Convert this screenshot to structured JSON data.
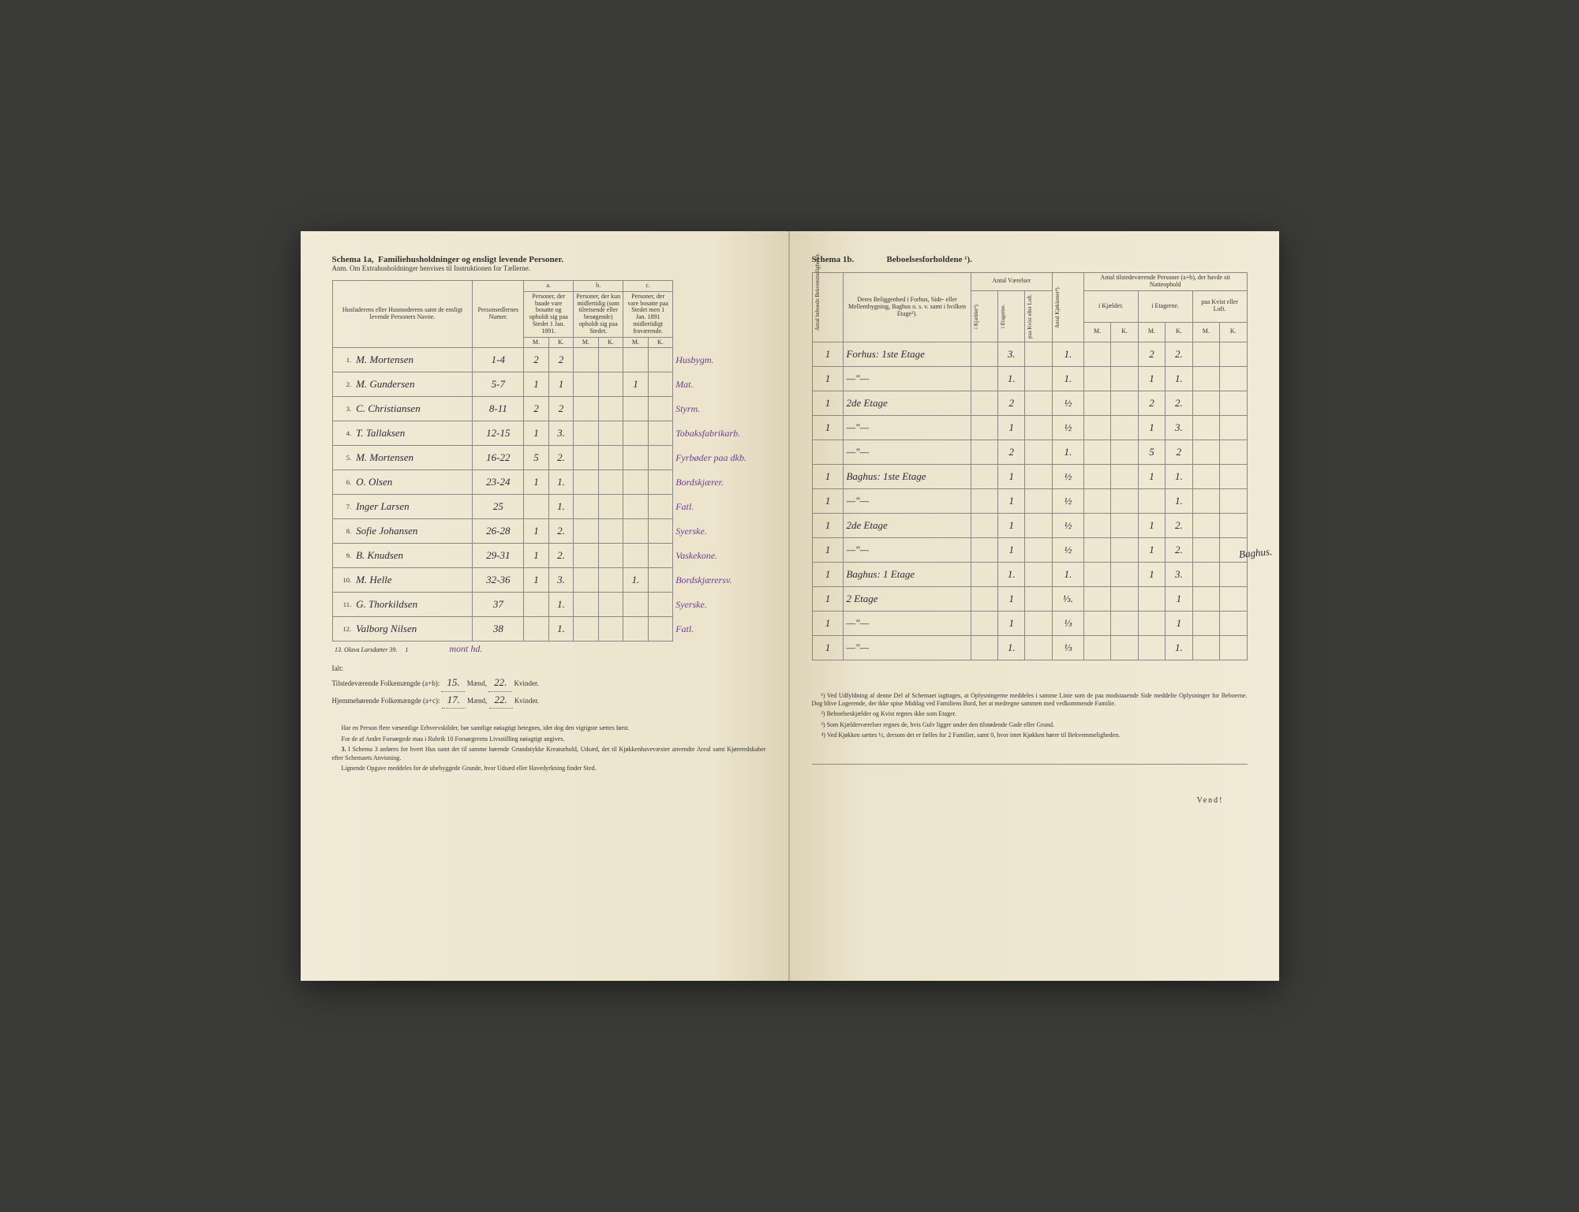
{
  "left": {
    "schema_title": "Schema 1a,",
    "schema_subtitle": "Familiehusholdninger og ensligt levende Personer.",
    "anm": "Anm. Om Extrahusholdninger henvises til Instruktionen for Tællerne.",
    "headers": {
      "name_col": "Husfaderens eller Husmoderens samt de ensligt levende Personers Navne.",
      "person_num": "Personsedlernes Numer.",
      "a_label": "a.",
      "a_desc": "Personer, der baade vare bosatte og opholdt sig paa Stedet 1 Jan. 1891.",
      "b_label": "b.",
      "b_desc": "Personer, der kun midlertidig (som tilreisende eller besøgende) opholdt sig paa Stedet.",
      "c_label": "c.",
      "c_desc": "Personer, der vare bosatte paa Stedet men 1 Jan. 1891 midlertidigt fraværende.",
      "M": "M.",
      "K": "K."
    },
    "rows": [
      {
        "n": "1.",
        "name": "M. Mortensen",
        "pn": "1-4",
        "aM": "2",
        "aK": "2",
        "bM": "",
        "bK": "",
        "cM": "",
        "cK": "",
        "occ": "Husbygm."
      },
      {
        "n": "2.",
        "name": "M. Gundersen",
        "pn": "5-7",
        "aM": "1",
        "aK": "1",
        "bM": "",
        "bK": "",
        "cM": "1",
        "cK": "",
        "occ": "Mat."
      },
      {
        "n": "3.",
        "name": "C. Christiansen",
        "pn": "8-11",
        "aM": "2",
        "aK": "2",
        "bM": "",
        "bK": "",
        "cM": "",
        "cK": "",
        "occ": "Styrm."
      },
      {
        "n": "4.",
        "name": "T. Tallaksen",
        "pn": "12-15",
        "aM": "1",
        "aK": "3.",
        "bM": "",
        "bK": "",
        "cM": "",
        "cK": "",
        "occ": "Tobaksfabrikarb."
      },
      {
        "n": "5.",
        "name": "M. Mortensen",
        "pn": "16-22",
        "aM": "5",
        "aK": "2.",
        "bM": "",
        "bK": "",
        "cM": "",
        "cK": "",
        "occ": "Fyrbøder paa dkb."
      },
      {
        "n": "6.",
        "name": "O. Olsen",
        "pn": "23-24",
        "aM": "1",
        "aK": "1.",
        "bM": "",
        "bK": "",
        "cM": "",
        "cK": "",
        "occ": "Bordskjærer."
      },
      {
        "n": "7.",
        "name": "Inger Larsen",
        "pn": "25",
        "aM": "",
        "aK": "1.",
        "bM": "",
        "bK": "",
        "cM": "",
        "cK": "",
        "occ": "Fatl."
      },
      {
        "n": "8.",
        "name": "Sofie Johansen",
        "pn": "26-28",
        "aM": "1",
        "aK": "2.",
        "bM": "",
        "bK": "",
        "cM": "",
        "cK": "",
        "occ": "Syerske."
      },
      {
        "n": "9.",
        "name": "B. Knudsen",
        "pn": "29-31",
        "aM": "1",
        "aK": "2.",
        "bM": "",
        "bK": "",
        "cM": "",
        "cK": "",
        "occ": "Vaskekone."
      },
      {
        "n": "10.",
        "name": "M. Helle",
        "pn": "32-36",
        "aM": "1",
        "aK": "3.",
        "bM": "",
        "bK": "",
        "cM": "1.",
        "cK": "",
        "occ": "Bordskjærersv."
      },
      {
        "n": "11.",
        "name": "G. Thorkildsen",
        "pn": "37",
        "aM": "",
        "aK": "1.",
        "bM": "",
        "bK": "",
        "cM": "",
        "cK": "",
        "occ": "Syerske."
      },
      {
        "n": "12.",
        "name": "Valborg Nilsen",
        "pn": "38",
        "aM": "",
        "aK": "1.",
        "bM": "",
        "bK": "",
        "cM": "",
        "cK": "",
        "occ": "Fatl."
      }
    ],
    "extra_row": {
      "n": "13.",
      "name": "Olava Larsdatter",
      "pn": "39.",
      "aK": "1",
      "occ": "mont hd."
    },
    "ialt": "Ialt:",
    "summary1_label": "Tilstedeværende Folkemængde (a+b):",
    "summary1_m": "15.",
    "summary1_k": "22.",
    "summary2_label": "Hjemmehørende Folkemængde (a+c):",
    "summary2_m": "17.",
    "summary2_k": "22.",
    "maend": "Mænd,",
    "kvinder": "Kvinder.",
    "footnote1": "Har en Person flere væsentlige Erhvervskilder, bør samtlige nøiagtigt betegnes, idet dog den vigtigste sættes først.",
    "footnote2": "For de af Andre Forsørgede maa i Rubrik 10 Forsørgerens Livsstilling nøiagtigt angives.",
    "footnote3_label": "3.",
    "footnote3": "I Schema 3 anføres for hvert Hus samt det til samme hørende Grundstykke Kreaturhold, Udsæd, det til Kjøkkenhavevæxter anvendte Areal samt Kjøreredskaber efter Schemaets Anvisning.",
    "footnote4": "Lignende Opgave meddeles for de ubebyggede Grunde, hvor Udsæd eller Havedyrkning finder Sted."
  },
  "right": {
    "schema_title": "Schema 1b.",
    "schema_subtitle": "Beboelsesforholdene ¹).",
    "headers": {
      "antal_bekv": "Antal beboede Bekvemmeligheder.",
      "beliggenhed": "Deres Beliggenhed i Forhus, Side- eller Mellembygning, Baghus o. s. v. samt i hvilken Etage²).",
      "antal_vaerelser": "Antal Værelser",
      "kjokkener": "Antal Kjøkkener⁴).",
      "tilstedev": "Antal tilstedeværende Personer (a+b), der havde sit Natteophold",
      "kjaelder_v": "i Kjælder³).",
      "etager_v": "i Etagerne.",
      "kvist_v": "paa Kvist eller Loft.",
      "kjaelder": "i Kjælder.",
      "etagerne": "i Etagerne.",
      "kvist": "paa Kvist eller Loft.",
      "M": "M.",
      "K": "K."
    },
    "rows": [
      {
        "bekv": "1",
        "loc": "Forhus: 1ste Etage",
        "kj": "",
        "et": "3.",
        "kv": "",
        "kjok": "1.",
        "kjM": "",
        "kjK": "",
        "etM": "2",
        "etK": "2.",
        "kvM": "",
        "kvK": ""
      },
      {
        "bekv": "1",
        "loc": "—\"—",
        "kj": "",
        "et": "1.",
        "kv": "",
        "kjok": "1.",
        "kjM": "",
        "kjK": "",
        "etM": "1",
        "etK": "1.",
        "kvM": "",
        "kvK": ""
      },
      {
        "bekv": "1",
        "loc": "2de Etage",
        "kj": "",
        "et": "2",
        "kv": "",
        "kjok": "½",
        "kjM": "",
        "kjK": "",
        "etM": "2",
        "etK": "2.",
        "kvM": "",
        "kvK": ""
      },
      {
        "bekv": "1",
        "loc": "—\"—",
        "kj": "",
        "et": "1",
        "kv": "",
        "kjok": "½",
        "kjM": "",
        "kjK": "",
        "etM": "1",
        "etK": "3.",
        "kvM": "",
        "kvK": ""
      },
      {
        "bekv": "",
        "loc": "—\"—",
        "kj": "",
        "et": "2",
        "kv": "",
        "kjok": "1.",
        "kjM": "",
        "kjK": "",
        "etM": "5",
        "etK": "2",
        "kvM": "",
        "kvK": ""
      },
      {
        "bekv": "1",
        "loc": "Baghus: 1ste Etage",
        "kj": "",
        "et": "1",
        "kv": "",
        "kjok": "½",
        "kjM": "",
        "kjK": "",
        "etM": "1",
        "etK": "1.",
        "kvM": "",
        "kvK": ""
      },
      {
        "bekv": "1",
        "loc": "—\"—",
        "kj": "",
        "et": "1",
        "kv": "",
        "kjok": "½",
        "kjM": "",
        "kjK": "",
        "etM": "",
        "etK": "1.",
        "kvM": "",
        "kvK": ""
      },
      {
        "bekv": "1",
        "loc": "2de Etage",
        "kj": "",
        "et": "1",
        "kv": "",
        "kjok": "½",
        "kjM": "",
        "kjK": "",
        "etM": "1",
        "etK": "2.",
        "kvM": "",
        "kvK": ""
      },
      {
        "bekv": "1",
        "loc": "—\"—",
        "kj": "",
        "et": "1",
        "kv": "",
        "kjok": "½",
        "kjM": "",
        "kjK": "",
        "etM": "1",
        "etK": "2.",
        "kvM": "",
        "kvK": ""
      },
      {
        "bekv": "1",
        "loc": "Baghus: 1 Etage",
        "kj": "",
        "et": "1.",
        "kv": "",
        "kjok": "1.",
        "kjM": "",
        "kjK": "",
        "etM": "1",
        "etK": "3.",
        "kvM": "",
        "kvK": ""
      },
      {
        "bekv": "1",
        "loc": "2 Etage",
        "kj": "",
        "et": "1",
        "kv": "",
        "kjok": "⅓.",
        "kjM": "",
        "kjK": "",
        "etM": "",
        "etK": "1",
        "kvM": "",
        "kvK": ""
      },
      {
        "bekv": "1",
        "loc": "—\"—",
        "kj": "",
        "et": "1",
        "kv": "",
        "kjok": "⅓",
        "kjM": "",
        "kjK": "",
        "etM": "",
        "etK": "1",
        "kvM": "",
        "kvK": ""
      },
      {
        "bekv": "1",
        "loc": "—\"—",
        "kj": "",
        "et": "1.",
        "kv": "",
        "kjok": "⅓",
        "kjM": "",
        "kjK": "",
        "etM": "",
        "etK": "1.",
        "kvM": "",
        "kvK": ""
      }
    ],
    "margin_note": "Baghus.",
    "fn1_label": "¹)",
    "fn1": "Ved Udfyldning af denne Del af Schemaet iagttages, at Oplysningerne meddeles i samme Linie som de paa modstaaende Side meddelte Oplysninger for Beboerne. Dog blive Logerende, der ikke spise Middag ved Familiens Bord, her at medregne sammen med vedkommende Familie.",
    "fn2_label": "²)",
    "fn2": "Beboelseskjælder og Kvist regnes ikke som Etager.",
    "fn3_label": "³)",
    "fn3": "Som Kjælderværelser regnes de, hvis Gulv ligger under den tilstødende Gade eller Grund.",
    "fn4_label": "⁴)",
    "fn4": "Ved Kjøkken sættes ½, dersom det er fælles for 2 Familier, samt 0, hvor intet Kjøkken hører til Bekvemmeligheden.",
    "vend": "Vend!"
  },
  "colors": {
    "paper": "#f0ead6",
    "ink": "#2a2a3a",
    "purple_ink": "#6b3f8c",
    "border": "#888"
  }
}
